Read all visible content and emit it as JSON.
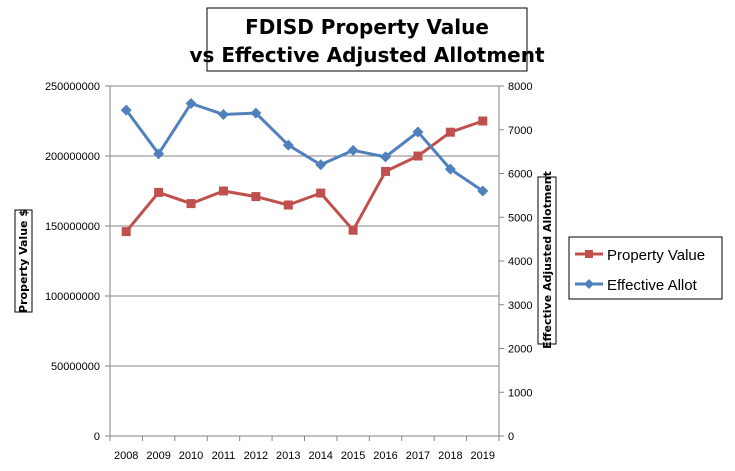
{
  "chart_data": {
    "type": "line",
    "title_line1": "FDISD Property Value",
    "title_line2": "vs Effective Adjusted Allotment",
    "x": [
      "2008",
      "2009",
      "2010",
      "2011",
      "2012",
      "2013",
      "2014",
      "2015",
      "2016",
      "2017",
      "2018",
      "2019"
    ],
    "ylabel_left": "Property Value $",
    "ylabel_right": "Effective Adjusted Allotment",
    "ylim_left": [
      0,
      250000000
    ],
    "ylim_right": [
      0,
      8000
    ],
    "yticks_left": [
      "0",
      "50000000",
      "100000000",
      "150000000",
      "200000000",
      "250000000"
    ],
    "yticks_right": [
      "0",
      "1000",
      "2000",
      "3000",
      "4000",
      "5000",
      "6000",
      "7000",
      "8000"
    ],
    "grid": true,
    "legend_position": "right",
    "series": [
      {
        "name": "Property Value",
        "axis": "left",
        "color": "#c0504d",
        "marker": "square",
        "values": [
          146000000,
          174000000,
          166000000,
          175000000,
          171000000,
          165000000,
          173500000,
          147000000,
          189000000,
          200000000,
          217000000,
          225000000
        ]
      },
      {
        "name": "Effective Allot",
        "axis": "right",
        "color": "#4f81bd",
        "marker": "diamond",
        "values": [
          7450,
          6450,
          7600,
          7350,
          7380,
          6650,
          6200,
          6530,
          6380,
          6950,
          6100,
          5600
        ]
      }
    ]
  }
}
